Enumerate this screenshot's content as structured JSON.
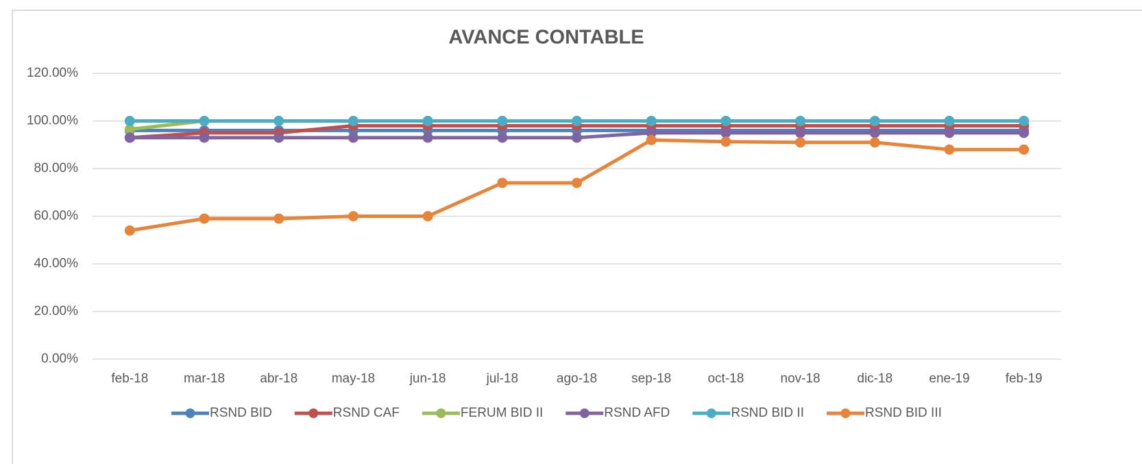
{
  "chart_data": {
    "type": "line",
    "title": "AVANCE CONTABLE",
    "categories": [
      "feb-18",
      "mar-18",
      "abr-18",
      "may-18",
      "jun-18",
      "jul-18",
      "ago-18",
      "sep-18",
      "oct-18",
      "nov-18",
      "dic-18",
      "ene-19",
      "feb-19"
    ],
    "series": [
      {
        "name": "RSND BID",
        "color": "#4f81bd",
        "values": [
          96,
          96,
          96,
          96,
          96,
          96,
          96,
          96,
          96,
          96,
          96,
          96,
          96
        ]
      },
      {
        "name": "RSND CAF",
        "color": "#c0504d",
        "values": [
          93,
          95,
          95,
          98,
          98,
          98,
          98,
          98,
          98,
          98,
          98,
          98,
          98
        ]
      },
      {
        "name": "FERUM BID II",
        "color": "#9bbb59",
        "values": [
          96.5,
          100,
          100,
          100,
          100,
          100,
          100,
          100,
          100,
          100,
          100,
          100,
          100
        ]
      },
      {
        "name": "RSND AFD",
        "color": "#8064a2",
        "values": [
          93,
          93,
          93,
          93,
          93,
          93,
          93,
          95,
          95,
          95,
          95,
          95,
          95
        ]
      },
      {
        "name": "RSND BID II",
        "color": "#4bacc6",
        "values": [
          100,
          100,
          100,
          100,
          100,
          100,
          100,
          100,
          100,
          100,
          100,
          100,
          100
        ]
      },
      {
        "name": "RSND BID III",
        "color": "#e8833a",
        "values": [
          54,
          59,
          59,
          60,
          60,
          74,
          74,
          92,
          91.3,
          91,
          91,
          88,
          88
        ]
      }
    ],
    "ylim": [
      0,
      120
    ],
    "yticks": [
      {
        "value": 0,
        "label": "0.00%"
      },
      {
        "value": 20,
        "label": "20.00%"
      },
      {
        "value": 40,
        "label": "40.00%"
      },
      {
        "value": 60,
        "label": "60.00%"
      },
      {
        "value": 80,
        "label": "80.00%"
      },
      {
        "value": 100,
        "label": "100.00%"
      },
      {
        "value": 120,
        "label": "120.00%"
      }
    ],
    "grid": true,
    "legend": "bottom"
  }
}
